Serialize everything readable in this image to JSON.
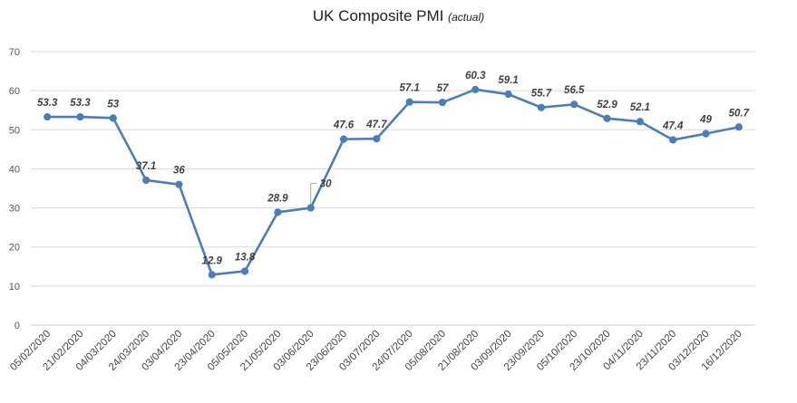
{
  "chart_data": {
    "type": "line",
    "title": "UK Composite PMI",
    "subtitle": "(actual)",
    "xlabel": "",
    "ylabel": "",
    "ylim": [
      0,
      70
    ],
    "yticks": [
      0,
      10,
      20,
      30,
      40,
      50,
      60,
      70
    ],
    "grid": true,
    "legend": "none",
    "line_color": "#4a7ebb",
    "categories": [
      "05/02/2020",
      "21/02/2020",
      "04/03/2020",
      "24/03/2020",
      "03/04/2020",
      "23/04/2020",
      "05/05/2020",
      "21/05/2020",
      "03/06/2020",
      "23/06/2020",
      "03/07/2020",
      "24/07/2020",
      "05/08/2020",
      "21/08/2020",
      "03/09/2020",
      "23/09/2020",
      "05/10/2020",
      "23/10/2020",
      "04/11/2020",
      "23/11/2020",
      "03/12/2020",
      "16/12/2020"
    ],
    "values": [
      53.3,
      53.3,
      53,
      37.1,
      36,
      12.9,
      13.8,
      28.9,
      30,
      47.6,
      47.7,
      57.1,
      57,
      60.3,
      59.1,
      55.7,
      56.5,
      52.9,
      52.1,
      47.4,
      49,
      50.7
    ]
  }
}
